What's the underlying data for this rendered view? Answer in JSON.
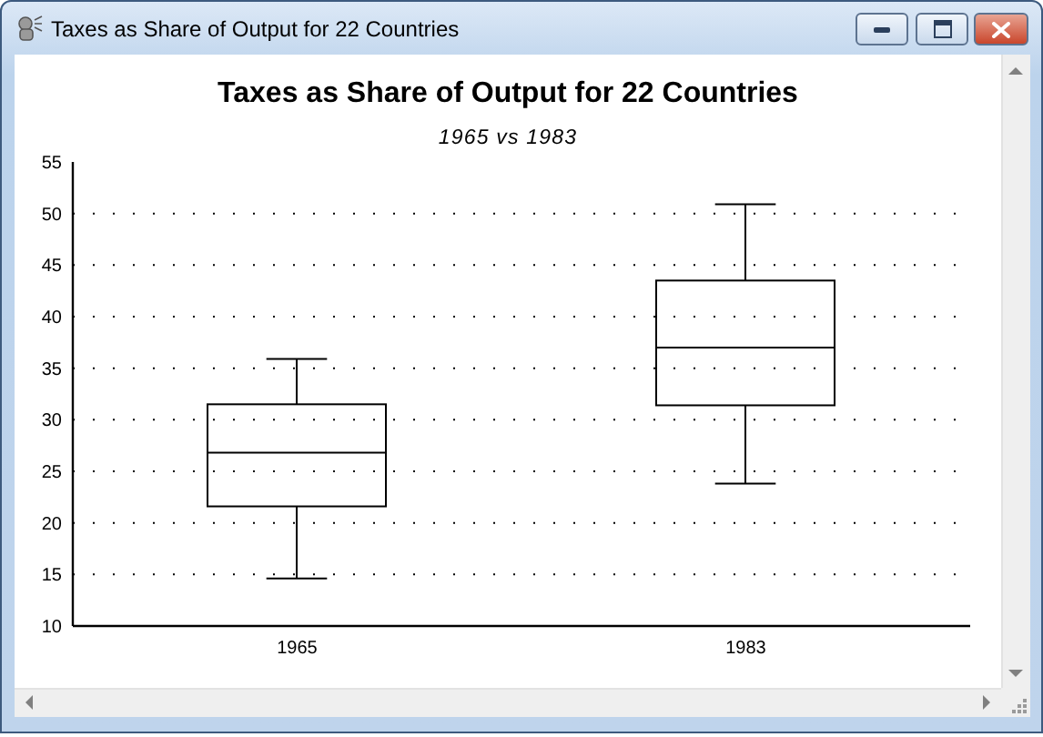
{
  "chart_data": {
    "type": "box",
    "title": "Taxes as Share of Output for 22 Countries",
    "subtitle": "1965 vs 1983",
    "categories": [
      "1965",
      "1983"
    ],
    "boxes": [
      {
        "low": 14.6,
        "q1": 21.6,
        "median": 26.8,
        "q3": 31.5,
        "high": 35.9
      },
      {
        "low": 23.8,
        "q1": 31.4,
        "median": 37,
        "q3": 43.5,
        "high": 50.9
      }
    ],
    "color": "#000000",
    "ylim": [
      10,
      55
    ],
    "yticks": [
      10,
      15,
      20,
      25,
      30,
      35,
      40,
      45,
      50,
      55
    ],
    "grid": "y"
  }
}
